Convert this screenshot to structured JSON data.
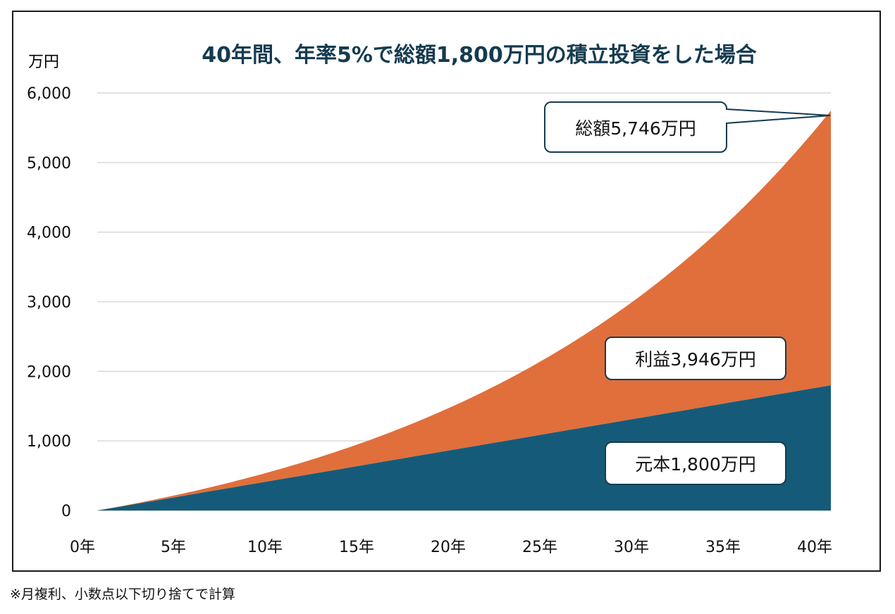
{
  "chart_data": {
    "type": "area",
    "title": "40年間、年率5%で総額1,800万円の積立投資をした場合",
    "yunit": "万円",
    "ylim": [
      0,
      6000
    ],
    "yticks": [
      0,
      1000,
      2000,
      3000,
      4000,
      5000,
      6000
    ],
    "ytick_labels": [
      "0",
      "1,000",
      "2,000",
      "3,000",
      "4,000",
      "5,000",
      "6,000"
    ],
    "xlim": [
      0,
      40
    ],
    "xticks": [
      0,
      5,
      10,
      15,
      20,
      25,
      30,
      35,
      40
    ],
    "xtick_labels": [
      "0年",
      "5年",
      "10年",
      "15年",
      "20年",
      "25年",
      "30年",
      "35年",
      "40年"
    ],
    "grid": "horizontal",
    "x": [
      0,
      5,
      10,
      15,
      20,
      25,
      30,
      35,
      40
    ],
    "stacked": true,
    "series": [
      {
        "name": "元本",
        "color": "#155b79",
        "values": [
          0,
          225,
          450,
          675,
          900,
          1125,
          1350,
          1575,
          1800
        ]
      },
      {
        "name": "利益",
        "color": "#e06f3c",
        "values": [
          0,
          30,
          126,
          327,
          646,
          1110,
          1772,
          2680,
          3946
        ]
      }
    ],
    "annotations": {
      "total": "総額5,746万円",
      "profit": "利益3,946万円",
      "principal": "元本1,800万円"
    }
  },
  "footnote": "※月複利、小数点以下切り捨てで計算"
}
